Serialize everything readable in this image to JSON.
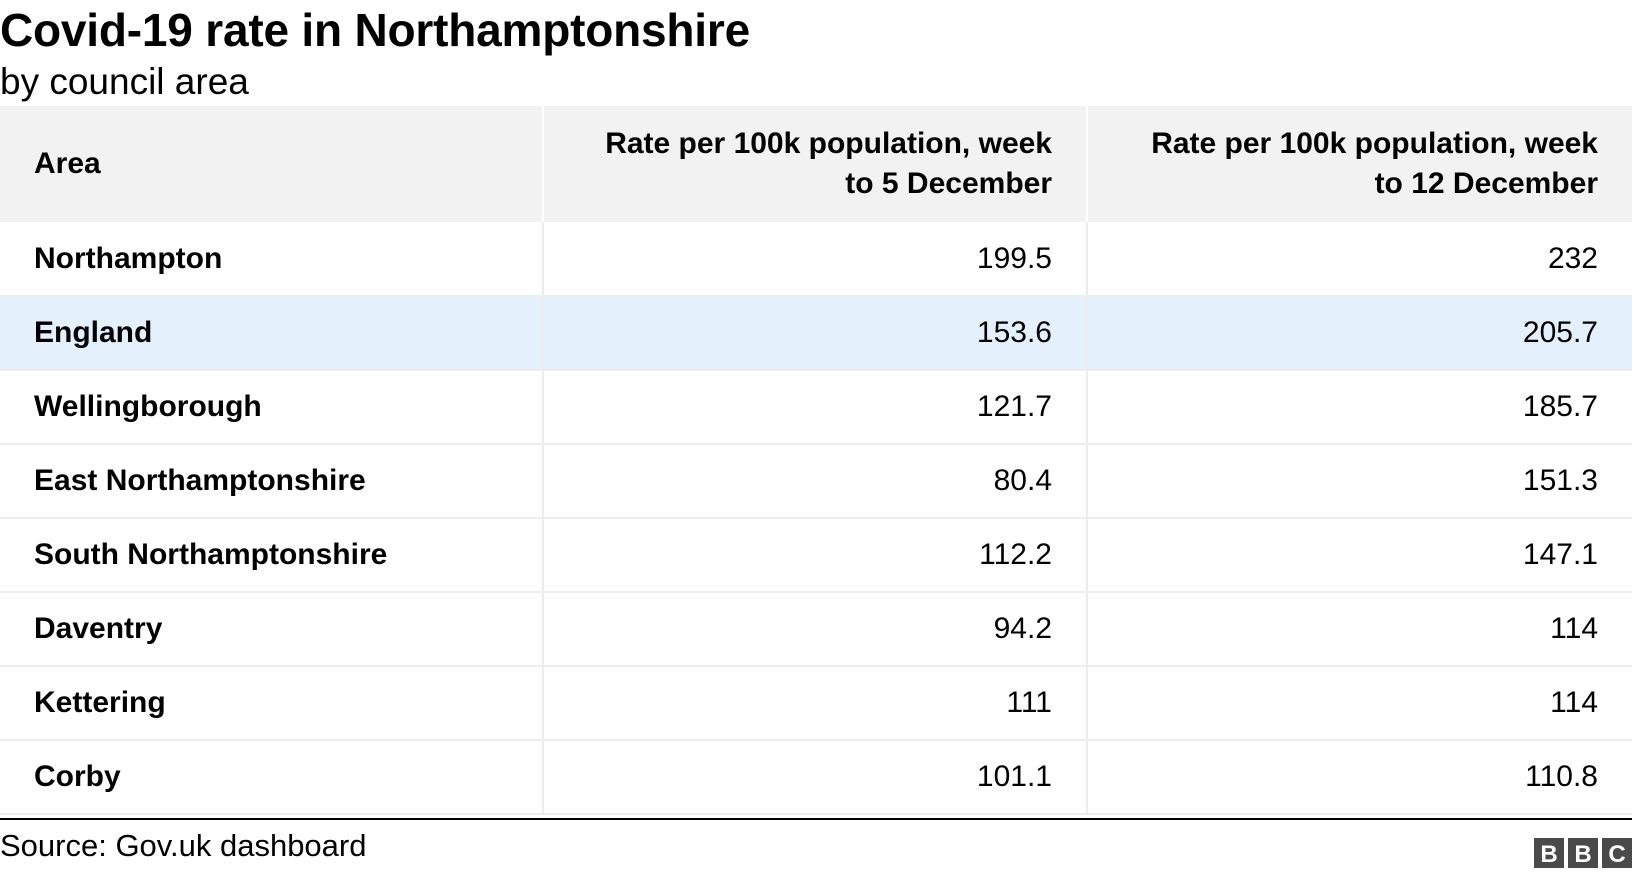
{
  "title": "Covid-19 rate in Northamptonshire",
  "subtitle": "by council area",
  "source": "Source: Gov.uk dashboard",
  "logo": {
    "text": "BBC",
    "icon": "bbc-logo"
  },
  "colors": {
    "header_bg": "#f2f2f2",
    "highlight_row": "#e4f1fc",
    "logo": "#4a4a4a"
  },
  "chart_data": {
    "type": "table",
    "title": "Covid-19 rate in Northamptonshire",
    "subtitle": "by council area",
    "columns": [
      "Area",
      "Rate per 100k population, week to 5 December",
      "Rate per 100k population, week to 12 December"
    ],
    "rows": [
      {
        "area": "Northampton",
        "week_to_5_dec": "199.5",
        "week_to_12_dec": "232"
      },
      {
        "area": "England",
        "week_to_5_dec": "153.6",
        "week_to_12_dec": "205.7",
        "highlighted": true
      },
      {
        "area": "Wellingborough",
        "week_to_5_dec": "121.7",
        "week_to_12_dec": "185.7"
      },
      {
        "area": "East Northamptonshire",
        "week_to_5_dec": "80.4",
        "week_to_12_dec": "151.3"
      },
      {
        "area": "South Northamptonshire",
        "week_to_5_dec": "112.2",
        "week_to_12_dec": "147.1"
      },
      {
        "area": "Daventry",
        "week_to_5_dec": "94.2",
        "week_to_12_dec": "114"
      },
      {
        "area": "Kettering",
        "week_to_5_dec": "111",
        "week_to_12_dec": "114"
      },
      {
        "area": "Corby",
        "week_to_5_dec": "101.1",
        "week_to_12_dec": "110.8"
      }
    ],
    "source": "Source: Gov.uk dashboard"
  }
}
